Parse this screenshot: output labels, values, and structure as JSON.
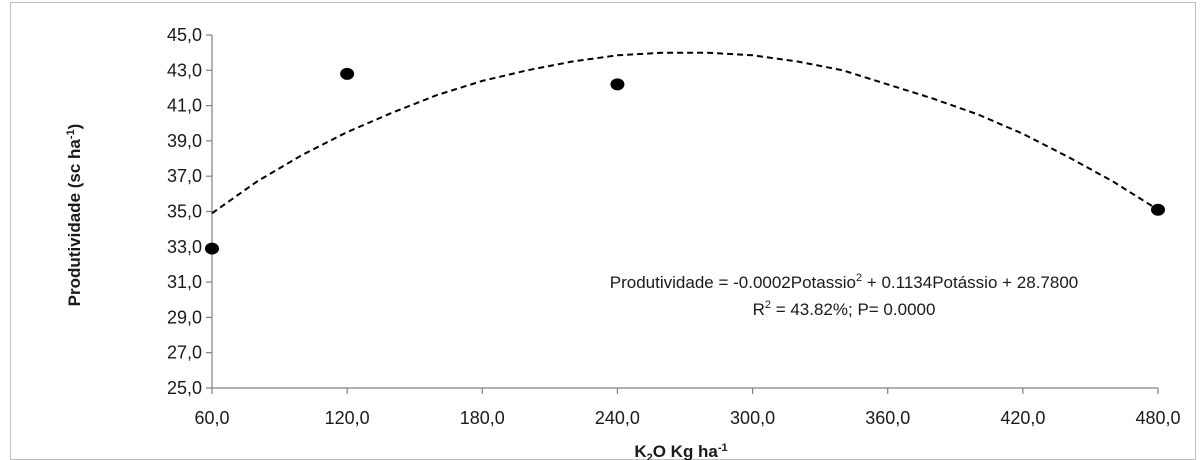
{
  "chart_data": {
    "type": "scatter",
    "title": "",
    "xlabel": {
      "base": "K",
      "sub": "2",
      "mid": "O Kg ha",
      "sup": "-1"
    },
    "ylabel": {
      "base": "Produtividade  (sc ha",
      "sup": "-1",
      "end": ")"
    },
    "xlim": [
      60,
      480
    ],
    "ylim": [
      25,
      45
    ],
    "x_ticks": [
      60,
      120,
      180,
      240,
      300,
      360,
      420,
      480
    ],
    "x_tick_labels": [
      "60,0",
      "120,0",
      "180,0",
      "240,0",
      "300,0",
      "360,0",
      "420,0",
      "480,0"
    ],
    "y_ticks": [
      25,
      27,
      29,
      31,
      33,
      35,
      37,
      39,
      41,
      43,
      45
    ],
    "y_tick_labels": [
      "25,0",
      "27,0",
      "29,0",
      "31,0",
      "33,0",
      "35,0",
      "37,0",
      "39,0",
      "41,0",
      "43,0",
      "45,0"
    ],
    "grid": false,
    "series": [
      {
        "points": [
          {
            "x": 60,
            "y": 32.9
          },
          {
            "x": 120,
            "y": 42.8
          },
          {
            "x": 240,
            "y": 42.2
          },
          {
            "x": 480,
            "y": 35.1
          }
        ]
      }
    ],
    "trendline": {
      "style": "dashed",
      "type": "polynomial",
      "points": [
        {
          "x": 60,
          "y": 34.9
        },
        {
          "x": 80,
          "y": 36.7
        },
        {
          "x": 100,
          "y": 38.2
        },
        {
          "x": 120,
          "y": 39.5
        },
        {
          "x": 140,
          "y": 40.6
        },
        {
          "x": 160,
          "y": 41.6
        },
        {
          "x": 180,
          "y": 42.4
        },
        {
          "x": 200,
          "y": 43.0
        },
        {
          "x": 220,
          "y": 43.5
        },
        {
          "x": 240,
          "y": 43.85
        },
        {
          "x": 260,
          "y": 44.0
        },
        {
          "x": 280,
          "y": 44.0
        },
        {
          "x": 300,
          "y": 43.85
        },
        {
          "x": 320,
          "y": 43.5
        },
        {
          "x": 340,
          "y": 43.0
        },
        {
          "x": 360,
          "y": 42.2
        },
        {
          "x": 380,
          "y": 41.4
        },
        {
          "x": 400,
          "y": 40.5
        },
        {
          "x": 420,
          "y": 39.4
        },
        {
          "x": 440,
          "y": 38.1
        },
        {
          "x": 460,
          "y": 36.7
        },
        {
          "x": 480,
          "y": 35.1
        }
      ]
    },
    "annotations": {
      "equation": {
        "lhs": "Produtividade = -0.0002Potassio",
        "sq": "2",
        "rhs": " + 0.1134Potássio + 28.7800"
      },
      "stats": {
        "r": "R",
        "sq": "2",
        "rest": " = 43.82%; P= 0.0000"
      }
    },
    "colors": {
      "marker": "#000000",
      "trendline": "#000000",
      "axis": "#808080",
      "text": "#1a1a1a"
    }
  }
}
